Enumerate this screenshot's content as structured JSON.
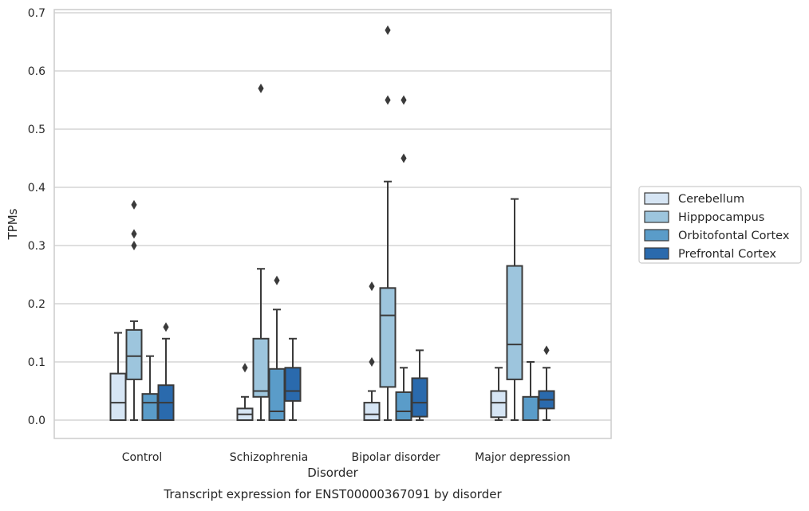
{
  "chart_data": {
    "type": "box",
    "title": "",
    "caption": "Transcript expression for ENST00000367091 by disorder",
    "xlabel": "Disorder",
    "ylabel": "TPMs",
    "ylim": [
      -0.032,
      0.705
    ],
    "yticks": [
      "0.0",
      "0.1",
      "0.2",
      "0.3",
      "0.4",
      "0.5",
      "0.6",
      "0.7"
    ],
    "grid": "horizontal",
    "legend_position": "right",
    "categories": [
      "Control",
      "Schizophrenia",
      "Bipolar disorder",
      "Major depression"
    ],
    "series": [
      {
        "name": "Cerebellum",
        "color": "#d6e5f4",
        "boxes": [
          {
            "whisker_low": 0.0,
            "q1": 0.0,
            "median": 0.03,
            "q3": 0.08,
            "whisker_high": 0.15,
            "outliers": []
          },
          {
            "whisker_low": 0.0,
            "q1": 0.0,
            "median": 0.01,
            "q3": 0.02,
            "whisker_high": 0.04,
            "outliers": [
              0.09
            ]
          },
          {
            "whisker_low": 0.0,
            "q1": 0.0,
            "median": 0.01,
            "q3": 0.03,
            "whisker_high": 0.05,
            "outliers": [
              0.1,
              0.23
            ]
          },
          {
            "whisker_low": 0.0,
            "q1": 0.005,
            "median": 0.03,
            "q3": 0.05,
            "whisker_high": 0.09,
            "outliers": []
          }
        ]
      },
      {
        "name": "Hipppocampus",
        "color": "#9dc5dd",
        "boxes": [
          {
            "whisker_low": 0.0,
            "q1": 0.07,
            "median": 0.11,
            "q3": 0.155,
            "whisker_high": 0.17,
            "outliers": [
              0.3,
              0.32,
              0.37
            ]
          },
          {
            "whisker_low": 0.0,
            "q1": 0.04,
            "median": 0.05,
            "q3": 0.14,
            "whisker_high": 0.26,
            "outliers": [
              0.57
            ]
          },
          {
            "whisker_low": 0.0,
            "q1": 0.057,
            "median": 0.18,
            "q3": 0.227,
            "whisker_high": 0.41,
            "outliers": [
              0.55,
              0.67
            ]
          },
          {
            "whisker_low": 0.0,
            "q1": 0.07,
            "median": 0.13,
            "q3": 0.265,
            "whisker_high": 0.38,
            "outliers": []
          }
        ]
      },
      {
        "name": "Orbitofontal Cortex",
        "color": "#5a9cc9",
        "boxes": [
          {
            "whisker_low": 0.0,
            "q1": 0.0,
            "median": 0.03,
            "q3": 0.045,
            "whisker_high": 0.11,
            "outliers": []
          },
          {
            "whisker_low": 0.0,
            "q1": 0.0,
            "median": 0.015,
            "q3": 0.088,
            "whisker_high": 0.19,
            "outliers": [
              0.24
            ]
          },
          {
            "whisker_low": 0.0,
            "q1": 0.0,
            "median": 0.015,
            "q3": 0.048,
            "whisker_high": 0.09,
            "outliers": [
              0.45,
              0.55
            ]
          },
          {
            "whisker_low": 0.0,
            "q1": 0.0,
            "median": 0.0,
            "q3": 0.04,
            "whisker_high": 0.1,
            "outliers": []
          }
        ]
      },
      {
        "name": "Prefrontal Cortex",
        "color": "#2a6aad",
        "boxes": [
          {
            "whisker_low": 0.0,
            "q1": 0.0,
            "median": 0.03,
            "q3": 0.06,
            "whisker_high": 0.14,
            "outliers": [
              0.16
            ]
          },
          {
            "whisker_low": 0.0,
            "q1": 0.033,
            "median": 0.05,
            "q3": 0.09,
            "whisker_high": 0.14,
            "outliers": []
          },
          {
            "whisker_low": 0.0,
            "q1": 0.006,
            "median": 0.03,
            "q3": 0.072,
            "whisker_high": 0.12,
            "outliers": []
          },
          {
            "whisker_low": 0.0,
            "q1": 0.02,
            "median": 0.035,
            "q3": 0.05,
            "whisker_high": 0.09,
            "outliers": [
              0.12
            ]
          }
        ]
      }
    ]
  }
}
